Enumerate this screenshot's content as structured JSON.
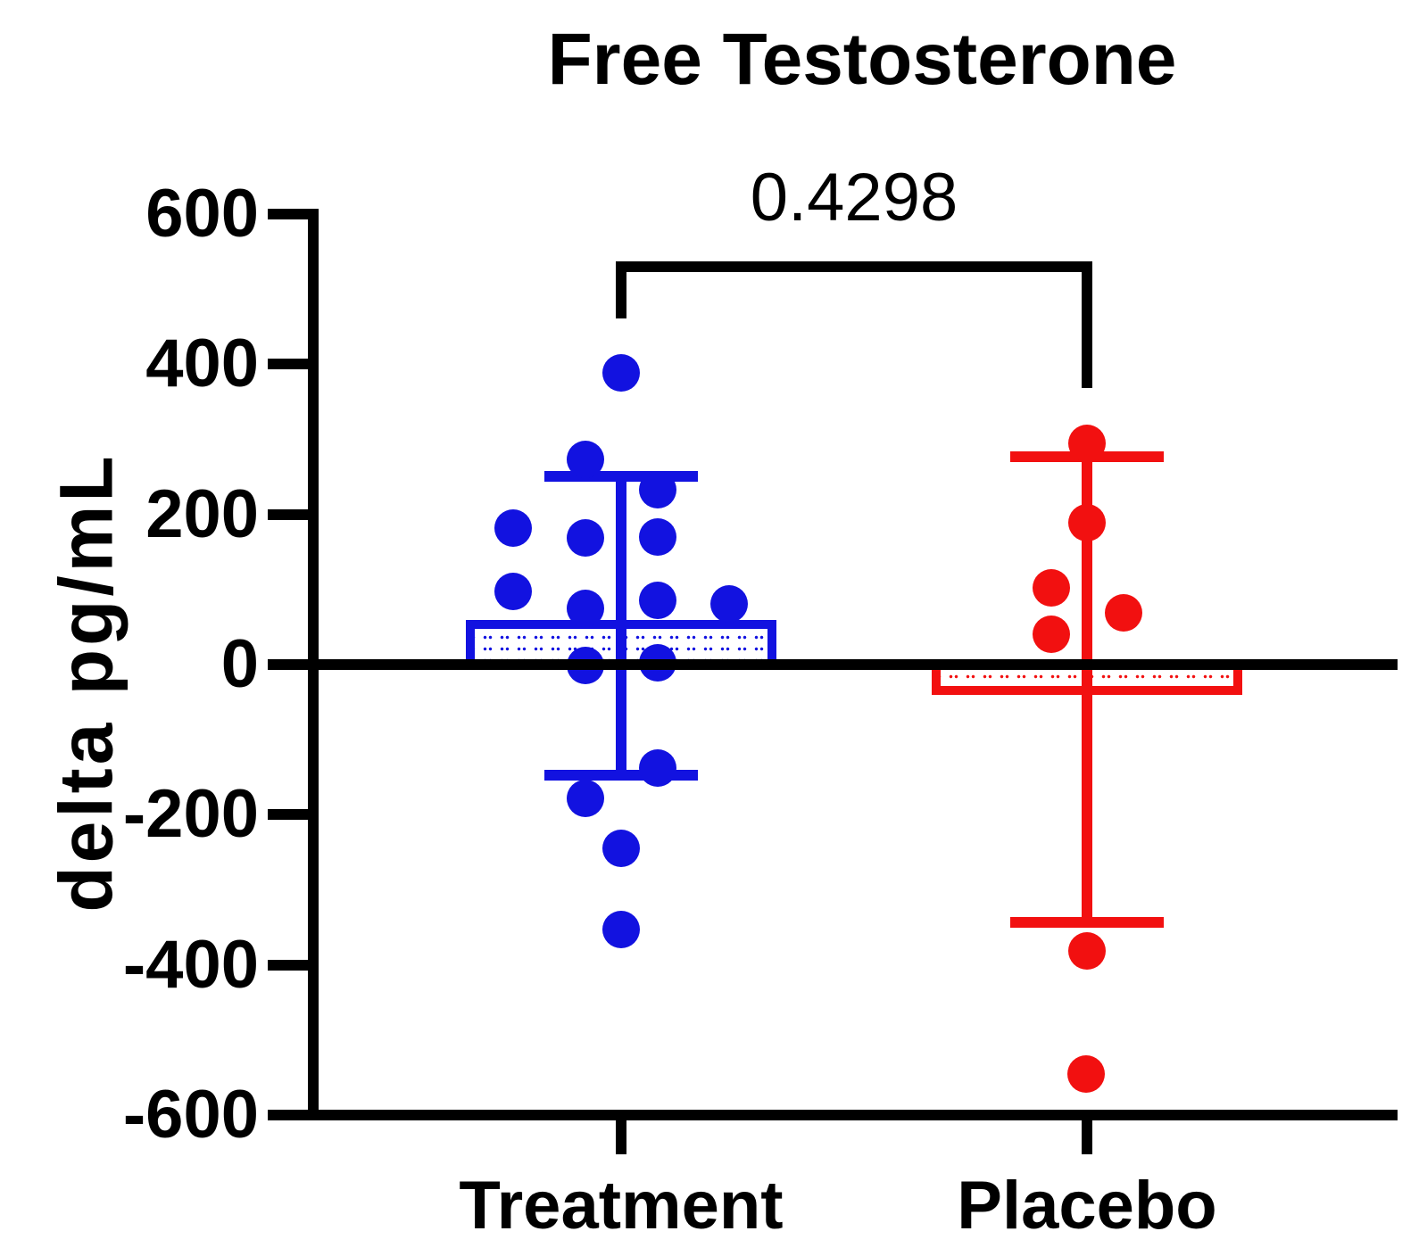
{
  "figure": {
    "title": "Free Testosterone",
    "p_value_label": "0.4298",
    "y_axis_title": "delta pg/mL"
  },
  "chart_data": {
    "type": "scatter",
    "subtype": "column-scatter-with-mean-sd-bars",
    "title": "Free Testosterone",
    "ylabel": "delta pg/mL",
    "xlabel": "",
    "ylim": [
      -600,
      600
    ],
    "yticks": [
      600,
      400,
      200,
      0,
      -200,
      -400,
      -600
    ],
    "grid": false,
    "legend": "none",
    "error_bar_type": "mean ± SD",
    "annotation": {
      "p_value": "0.4298",
      "comparison": [
        "Treatment",
        "Placebo"
      ]
    },
    "colors": {
      "treatment": "#1212e0",
      "placebo": "#f21010",
      "axis": "#000000"
    },
    "groups": [
      {
        "label": "Treatment",
        "color": "#1212e0",
        "n": 16,
        "mean": 52,
        "sd": 199,
        "values": [
          388,
          273,
          233,
          182,
          170,
          169,
          97,
          85,
          81,
          75,
          2,
          -1,
          -138,
          -178,
          -245,
          -353
        ],
        "points": [
          {
            "v": 388,
            "dx": 0
          },
          {
            "v": 273,
            "dx": -40
          },
          {
            "v": 233,
            "dx": 41
          },
          {
            "v": 182,
            "dx": -121
          },
          {
            "v": 170,
            "dx": 41
          },
          {
            "v": 169,
            "dx": -40
          },
          {
            "v": 97,
            "dx": -121
          },
          {
            "v": 85,
            "dx": 41
          },
          {
            "v": 81,
            "dx": 121
          },
          {
            "v": 75,
            "dx": -40
          },
          {
            "v": 2,
            "dx": 41
          },
          {
            "v": -1,
            "dx": -40
          },
          {
            "v": -138,
            "dx": 41
          },
          {
            "v": -178,
            "dx": -40
          },
          {
            "v": -245,
            "dx": 0
          },
          {
            "v": -353,
            "dx": 0
          }
        ]
      },
      {
        "label": "Placebo",
        "color": "#f21010",
        "n": 7,
        "mean": -33,
        "sd": 310,
        "values": [
          295,
          189,
          102,
          69,
          40,
          -381,
          -545
        ],
        "points": [
          {
            "v": 295,
            "dx": 0
          },
          {
            "v": 189,
            "dx": 0
          },
          {
            "v": 102,
            "dx": -40
          },
          {
            "v": 69,
            "dx": 41
          },
          {
            "v": 40,
            "dx": -40
          },
          {
            "v": -381,
            "dx": 0
          },
          {
            "v": -545,
            "dx": -1
          }
        ]
      }
    ]
  }
}
